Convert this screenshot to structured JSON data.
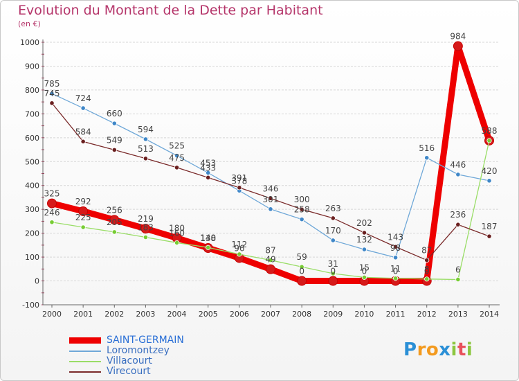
{
  "title": "Evolution du Montant de la Dette par Habitant",
  "subtitle": "(en €)",
  "colors": {
    "title": "#b5356a",
    "grid": "#d6d6d6",
    "axis": "#666666",
    "label": "#444444"
  },
  "chart_data": {
    "type": "line",
    "x": [
      2000,
      2001,
      2002,
      2003,
      2004,
      2005,
      2006,
      2007,
      2008,
      2009,
      2010,
      2011,
      2012,
      2013,
      2014
    ],
    "xlim": [
      2000,
      2014
    ],
    "ylim": [
      -100,
      1000
    ],
    "yticks": [
      -100,
      0,
      100,
      200,
      300,
      400,
      500,
      600,
      700,
      800,
      900,
      1000
    ],
    "grid": "horizontal",
    "legend_position": "bottom-left",
    "series": [
      {
        "name": "SAINT-GERMAIN",
        "color": "#ee0000",
        "marker": "#d61a1a",
        "width": 9,
        "labelColor": "#555555",
        "values": [
          325,
          292,
          256,
          219,
          180,
          138,
          96,
          49,
          0,
          0,
          0,
          0,
          0,
          984,
          588
        ]
      },
      {
        "name": "Loromontzey",
        "color": "#6fa8d8",
        "marker": "#3f87c8",
        "width": 1.3,
        "labelColor": "#555555",
        "values": [
          785,
          724,
          660,
          594,
          525,
          453,
          378,
          301,
          258,
          170,
          132,
          98,
          516,
          446,
          420
        ]
      },
      {
        "name": "Villacourt",
        "color": "#99dd66",
        "marker": "#77cc33",
        "width": 1.3,
        "labelColor": "#555555",
        "values": [
          246,
          225,
          205,
          183,
          160,
          140,
          112,
          87,
          59,
          31,
          15,
          11,
          8,
          6,
          588
        ]
      },
      {
        "name": "Virecourt",
        "color": "#7a2a2a",
        "marker": "#6a1f1f",
        "width": 1.3,
        "labelColor": "#555555",
        "values": [
          745,
          584,
          549,
          513,
          475,
          433,
          391,
          346,
          300,
          263,
          202,
          143,
          87,
          236,
          187
        ]
      }
    ],
    "data_labels": [
      {
        "year": 2000,
        "value": 785,
        "text": "785"
      },
      {
        "year": 2000,
        "value": 745,
        "text": "745"
      },
      {
        "year": 2000,
        "value": 325,
        "text": "325"
      },
      {
        "year": 2000,
        "value": 246,
        "text": "246"
      },
      {
        "year": 2001,
        "value": 724,
        "text": "724"
      },
      {
        "year": 2001,
        "value": 584,
        "text": "584"
      },
      {
        "year": 2001,
        "value": 292,
        "text": "292"
      },
      {
        "year": 2001,
        "value": 225,
        "text": "225"
      },
      {
        "year": 2002,
        "value": 660,
        "text": "660"
      },
      {
        "year": 2002,
        "value": 549,
        "text": "549"
      },
      {
        "year": 2002,
        "value": 256,
        "text": "256"
      },
      {
        "year": 2002,
        "value": 205,
        "text": "205"
      },
      {
        "year": 2003,
        "value": 594,
        "text": "594"
      },
      {
        "year": 2003,
        "value": 513,
        "text": "513"
      },
      {
        "year": 2003,
        "value": 219,
        "text": "219"
      },
      {
        "year": 2003,
        "value": 183,
        "text": "183"
      },
      {
        "year": 2004,
        "value": 525,
        "text": "525"
      },
      {
        "year": 2004,
        "value": 475,
        "text": "475"
      },
      {
        "year": 2004,
        "value": 180,
        "text": "180"
      },
      {
        "year": 2004,
        "value": 160,
        "text": "160"
      },
      {
        "year": 2005,
        "value": 453,
        "text": "453"
      },
      {
        "year": 2005,
        "value": 433,
        "text": "433"
      },
      {
        "year": 2005,
        "value": 138,
        "text": "138"
      },
      {
        "year": 2005,
        "value": 140,
        "text": "140"
      },
      {
        "year": 2006,
        "value": 391,
        "text": "391"
      },
      {
        "year": 2006,
        "value": 378,
        "text": "378"
      },
      {
        "year": 2006,
        "value": 112,
        "text": "112"
      },
      {
        "year": 2006,
        "value": 96,
        "text": "96"
      },
      {
        "year": 2007,
        "value": 346,
        "text": "346"
      },
      {
        "year": 2007,
        "value": 301,
        "text": "301"
      },
      {
        "year": 2007,
        "value": 87,
        "text": "87"
      },
      {
        "year": 2007,
        "value": 49,
        "text": "49"
      },
      {
        "year": 2008,
        "value": 300,
        "text": "300"
      },
      {
        "year": 2008,
        "value": 258,
        "text": "258"
      },
      {
        "year": 2008,
        "value": 59,
        "text": "59"
      },
      {
        "year": 2008,
        "value": 0,
        "text": "0"
      },
      {
        "year": 2009,
        "value": 263,
        "text": "263"
      },
      {
        "year": 2009,
        "value": 170,
        "text": "170"
      },
      {
        "year": 2009,
        "value": 31,
        "text": "31"
      },
      {
        "year": 2009,
        "value": 0,
        "text": "0"
      },
      {
        "year": 2010,
        "value": 202,
        "text": "202"
      },
      {
        "year": 2010,
        "value": 132,
        "text": "132"
      },
      {
        "year": 2010,
        "value": 15,
        "text": "15"
      },
      {
        "year": 2010,
        "value": 0,
        "text": "0"
      },
      {
        "year": 2011,
        "value": 143,
        "text": "143"
      },
      {
        "year": 2011,
        "value": 98,
        "text": "98"
      },
      {
        "year": 2011,
        "value": 11,
        "text": "11"
      },
      {
        "year": 2011,
        "value": 0,
        "text": "0"
      },
      {
        "year": 2012,
        "value": 516,
        "text": "516"
      },
      {
        "year": 2012,
        "value": 87,
        "text": "87"
      },
      {
        "year": 2012,
        "value": 8,
        "text": "8"
      },
      {
        "year": 2012,
        "value": 0,
        "text": "0"
      },
      {
        "year": 2013,
        "value": 984,
        "text": "984"
      },
      {
        "year": 2013,
        "value": 446,
        "text": "446"
      },
      {
        "year": 2013,
        "value": 236,
        "text": "236"
      },
      {
        "year": 2013,
        "value": 6,
        "text": "6"
      },
      {
        "year": 2014,
        "value": 588,
        "text": "588"
      },
      {
        "year": 2014,
        "value": 420,
        "text": "420"
      },
      {
        "year": 2014,
        "value": 187,
        "text": "187"
      }
    ]
  },
  "logo": {
    "letters": [
      {
        "ch": "P",
        "color": "#2a8fd6"
      },
      {
        "ch": "r",
        "color": "#f39a1e"
      },
      {
        "ch": "o",
        "color": "#f39a1e"
      },
      {
        "ch": "x",
        "color": "#2a8fd6"
      },
      {
        "ch": "i",
        "color": "#8cc63f"
      },
      {
        "ch": "t",
        "color": "#e8505b"
      },
      {
        "ch": "i",
        "color": "#8cc63f"
      }
    ]
  }
}
